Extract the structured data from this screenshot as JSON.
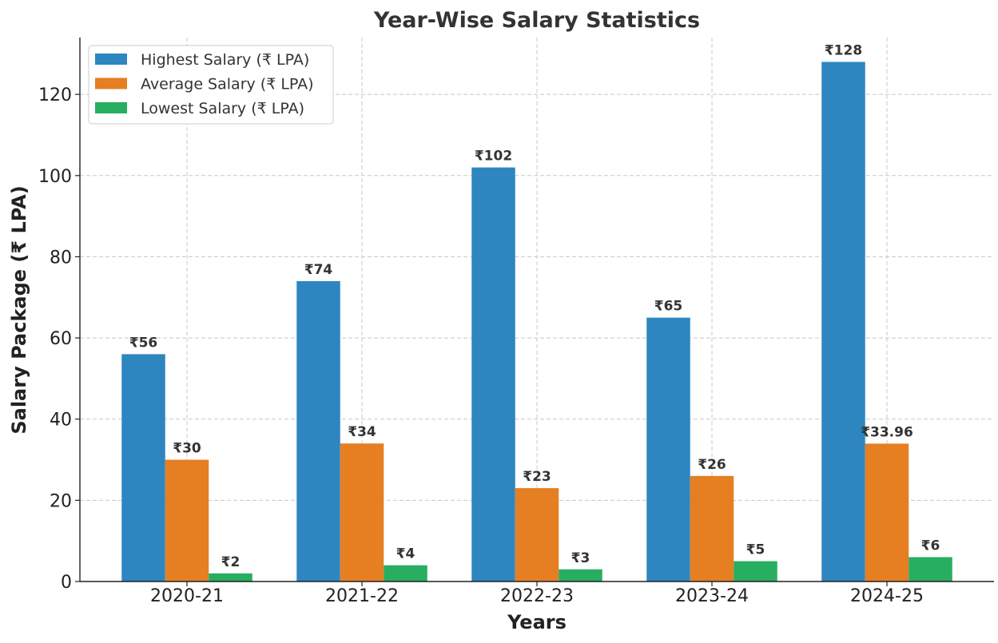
{
  "chart_data": {
    "type": "bar",
    "title": "Year-Wise Salary Statistics",
    "xlabel": "Years",
    "ylabel": "Salary Package (₹ LPA)",
    "categories": [
      "2020-21",
      "2021-22",
      "2022-23",
      "2023-24",
      "2024-25"
    ],
    "ylim": [
      0,
      134
    ],
    "yticks": [
      0,
      20,
      40,
      60,
      80,
      100,
      120
    ],
    "grid": true,
    "legend_position": "top-left",
    "series": [
      {
        "name": "Highest Salary (₹ LPA)",
        "color": "#2e86c1",
        "values": [
          56,
          74,
          102,
          65,
          128
        ],
        "labels": [
          "₹56",
          "₹74",
          "₹102",
          "₹65",
          "₹128"
        ]
      },
      {
        "name": "Average Salary (₹ LPA)",
        "color": "#e67e22",
        "values": [
          30,
          34,
          23,
          26,
          33.96
        ],
        "labels": [
          "₹30",
          "₹34",
          "₹23",
          "₹26",
          "₹33.96"
        ]
      },
      {
        "name": "Lowest Salary (₹ LPA)",
        "color": "#27ae60",
        "values": [
          2,
          4,
          3,
          5,
          6
        ],
        "labels": [
          "₹2",
          "₹4",
          "₹3",
          "₹5",
          "₹6"
        ]
      }
    ]
  }
}
